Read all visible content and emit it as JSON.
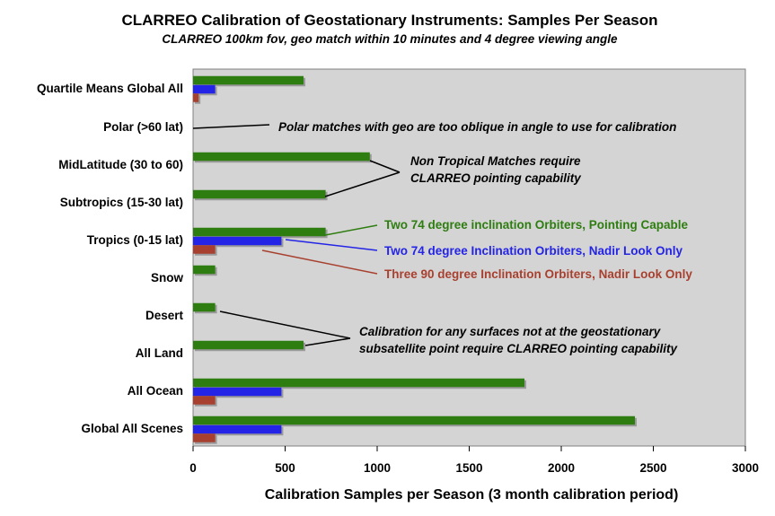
{
  "chart_data": {
    "type": "bar",
    "orientation": "horizontal",
    "title": "CLARREO Calibration of Geostationary Instruments: Samples Per Season",
    "subtitle": "CLARREO 100km fov, geo match within 10 minutes and 4 degree viewing angle",
    "xlabel": "Calibration Samples per Season (3 month calibration period)",
    "ylabel": "",
    "xlim": [
      0,
      3000
    ],
    "xticks": [
      "0",
      "500",
      "1000",
      "1500",
      "2000",
      "2500",
      "3000"
    ],
    "categories": [
      "Quartile Means Global All",
      "Polar (>60 lat)",
      "MidLatitude (30 to 60)",
      "Subtropics (15-30 lat)",
      "Tropics (0-15 lat)",
      "Snow",
      "Desert",
      "All Land",
      "All Ocean",
      "Global All Scenes"
    ],
    "series": [
      {
        "name": "Two 74 degree inclination Orbiters, Pointing Capable",
        "color": "#2e7d10",
        "values": [
          600,
          null,
          960,
          720,
          720,
          120,
          120,
          600,
          1800,
          2400
        ]
      },
      {
        "name": "Two 74 degree Inclination Orbiters, Nadir Look Only",
        "color": "#2424e6",
        "values": [
          120,
          null,
          null,
          null,
          480,
          null,
          null,
          null,
          480,
          480
        ]
      },
      {
        "name": "Three 90 degree Inclination Orbiters, Nadir Look Only",
        "color": "#a8402f",
        "values": [
          30,
          null,
          null,
          null,
          120,
          null,
          null,
          null,
          120,
          120
        ]
      }
    ],
    "annotations": [
      "Polar matches with geo are too oblique in angle to use for calibration",
      "Non Tropical Matches require",
      "CLARREO pointing capability",
      "Calibration for any surfaces not at the geostationary",
      "subsatellite point require CLARREO pointing capability"
    ],
    "grid": false,
    "legend": "right (inline labels)",
    "plot_background": "#d4d4d4"
  }
}
